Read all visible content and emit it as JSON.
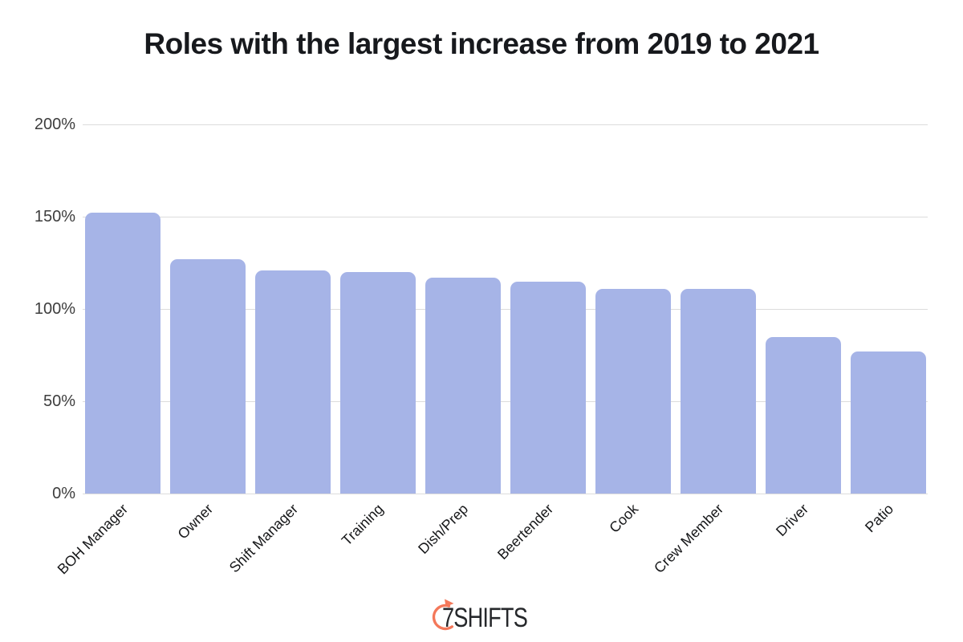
{
  "title": "Roles with the largest increase from 2019 to 2021",
  "chart_data": {
    "type": "bar",
    "title": "Roles with the largest increase from 2019 to 2021",
    "categories": [
      "BOH Manager",
      "Owner",
      "Shift Manager",
      "Training",
      "Dish/Prep",
      "Beertender",
      "Cook",
      "Crew Member",
      "Driver",
      "Patio"
    ],
    "values": [
      152,
      127,
      121,
      120,
      117,
      115,
      111,
      111,
      85,
      77
    ],
    "value_unit": "%",
    "xlabel": "",
    "ylabel": "",
    "ylim": [
      0,
      200
    ],
    "yticks": [
      0,
      50,
      100,
      150,
      200
    ],
    "ytick_labels": [
      "0%",
      "50%",
      "100%",
      "150%",
      "200%"
    ],
    "grid": true,
    "legend": false,
    "bar_color": "#a6b4e7",
    "gridline_color": "#dcdcdc"
  },
  "footer": {
    "logo_text": "7SHIFTS",
    "logo_icon": "stopwatch-arc-icon",
    "logo_accent_color": "#f4785a",
    "logo_text_color": "#26282b"
  }
}
